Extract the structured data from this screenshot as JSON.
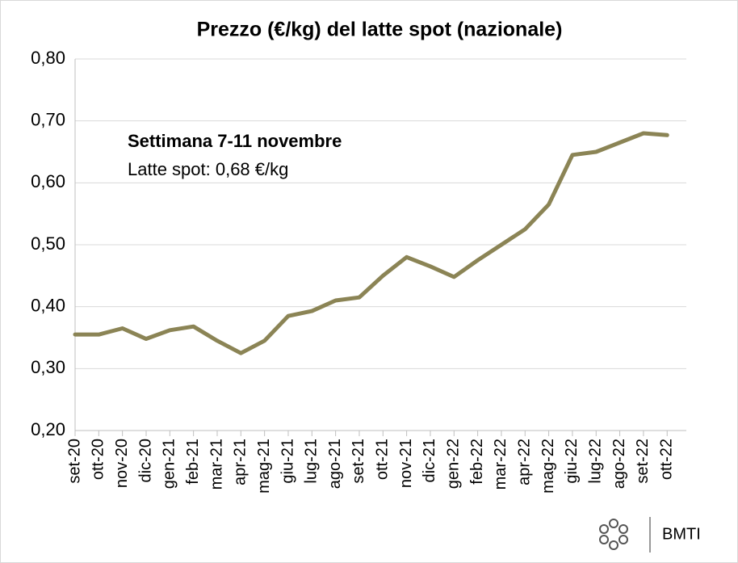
{
  "chart_data": {
    "type": "line",
    "title": "Prezzo (€/kg) del latte spot (nazionale)",
    "annotations": [
      "Settimana 7-11 novembre",
      "Latte spot: 0,68 €/kg"
    ],
    "source": "BMTI",
    "categories": [
      "set-20",
      "ott-20",
      "nov-20",
      "dic-20",
      "gen-21",
      "feb-21",
      "mar-21",
      "apr-21",
      "mag-21",
      "giu-21",
      "lug-21",
      "ago-21",
      "set-21",
      "ott-21",
      "nov-21",
      "dic-21",
      "gen-22",
      "feb-22",
      "mar-22",
      "apr-22",
      "mag-22",
      "giu-22",
      "lug-22",
      "ago-22",
      "set-22",
      "ott-22"
    ],
    "series": [
      {
        "name": "Latte spot",
        "color": "#8b8455",
        "values": [
          0.355,
          0.355,
          0.365,
          0.348,
          0.362,
          0.368,
          0.345,
          0.325,
          0.345,
          0.385,
          0.393,
          0.41,
          0.415,
          0.45,
          0.48,
          0.465,
          0.448,
          0.475,
          0.5,
          0.525,
          0.565,
          0.645,
          0.65,
          0.665,
          0.68,
          0.677
        ]
      }
    ],
    "ylim": [
      0.2,
      0.8
    ],
    "yticks": [
      {
        "value": 0.2,
        "label": "0,20"
      },
      {
        "value": 0.3,
        "label": "0,30"
      },
      {
        "value": 0.4,
        "label": "0,40"
      },
      {
        "value": 0.5,
        "label": "0,50"
      },
      {
        "value": 0.6,
        "label": "0,60"
      },
      {
        "value": 0.7,
        "label": "0,70"
      },
      {
        "value": 0.8,
        "label": "0,80"
      }
    ],
    "grid": true,
    "legend": false
  }
}
